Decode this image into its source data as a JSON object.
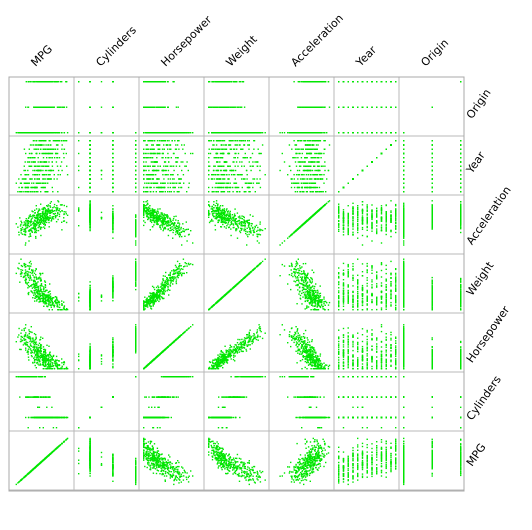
{
  "chart_data": {
    "type": "scatter",
    "title": "",
    "variables": [
      "MPG",
      "Cylinders",
      "Horsepower",
      "Weight",
      "Acceleration",
      "Year",
      "Origin"
    ],
    "top_labels": [
      "MPG",
      "Cylinders",
      "Horsepower",
      "Weight",
      "Acceleration",
      "Year",
      "Origin"
    ],
    "right_labels": [
      "Origin",
      "Year",
      "Acceleration",
      "Weight",
      "Horsepower",
      "Cylinders",
      "MPG"
    ],
    "ranges": {
      "MPG": [
        9,
        47
      ],
      "Cylinders": [
        3,
        8
      ],
      "Horsepower": [
        46,
        230
      ],
      "Weight": [
        1613,
        5140
      ],
      "Acceleration": [
        8,
        25
      ],
      "Year": [
        70,
        82
      ],
      "Origin": [
        1,
        3
      ]
    },
    "point_color": "#00e600",
    "grid": false,
    "legend": "none",
    "n_points": 392
  }
}
